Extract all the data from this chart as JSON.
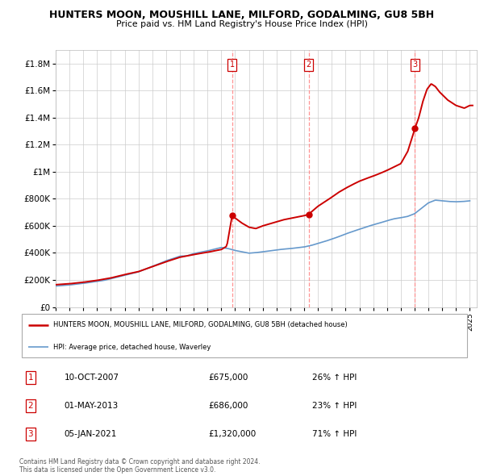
{
  "title": "HUNTERS MOON, MOUSHILL LANE, MILFORD, GODALMING, GU8 5BH",
  "subtitle": "Price paid vs. HM Land Registry's House Price Index (HPI)",
  "legend_line1": "HUNTERS MOON, MOUSHILL LANE, MILFORD, GODALMING, GU8 5BH (detached house)",
  "legend_line2": "HPI: Average price, detached house, Waverley",
  "transactions": [
    {
      "num": 1,
      "date": "10-OCT-2007",
      "price": 675000,
      "pct": "26%",
      "dir": "↑"
    },
    {
      "num": 2,
      "date": "01-MAY-2013",
      "price": 686000,
      "pct": "23%",
      "dir": "↑"
    },
    {
      "num": 3,
      "date": "05-JAN-2021",
      "price": 1320000,
      "pct": "71%",
      "dir": "↑"
    }
  ],
  "transaction_dates_dec": [
    2007.78,
    2013.33,
    2021.02
  ],
  "transaction_prices": [
    675000,
    686000,
    1320000
  ],
  "footnote1": "Contains HM Land Registry data © Crown copyright and database right 2024.",
  "footnote2": "This data is licensed under the Open Government Licence v3.0.",
  "ylim": [
    0,
    1900000
  ],
  "yticks": [
    0,
    200000,
    400000,
    600000,
    800000,
    1000000,
    1200000,
    1400000,
    1600000,
    1800000
  ],
  "ytick_labels": [
    "£0",
    "£200K",
    "£400K",
    "£600K",
    "£800K",
    "£1M",
    "£1.2M",
    "£1.4M",
    "£1.6M",
    "£1.8M"
  ],
  "xlim_start": 1995.0,
  "xlim_end": 2025.5,
  "red_color": "#CC0000",
  "blue_color": "#6699CC",
  "dashed_color": "#FF8888",
  "background_color": "#FFFFFF",
  "grid_color": "#CCCCCC",
  "hpi_years": [
    1995,
    1996,
    1997,
    1998,
    1999,
    2000,
    2001,
    2002,
    2003,
    2004,
    1995.5,
    1996.5,
    1997.5,
    1998.5,
    1999.5,
    2000.5,
    2001.5,
    2002.5,
    2003.5,
    2004.5,
    2005,
    2006,
    2007,
    2007.5,
    2008,
    2008.5,
    2009,
    2009.5,
    2010,
    2010.5,
    2011,
    2011.5,
    2012,
    2012.5,
    2013,
    2013.5,
    2014,
    2014.5,
    2015,
    2015.5,
    2016,
    2016.5,
    2017,
    2017.5,
    2018,
    2018.5,
    2019,
    2019.5,
    2020,
    2020.5,
    2021,
    2021.5,
    2022,
    2022.5,
    2023,
    2023.5,
    2024,
    2024.5,
    2025
  ],
  "hpi_prices": [
    155000,
    163000,
    175000,
    190000,
    210000,
    235000,
    260000,
    300000,
    342000,
    376000,
    159000,
    169000,
    182000,
    197000,
    222000,
    247000,
    280000,
    320000,
    358000,
    378000,
    395000,
    415000,
    440000,
    432000,
    418000,
    408000,
    398000,
    402000,
    408000,
    415000,
    422000,
    428000,
    432000,
    438000,
    444000,
    455000,
    470000,
    485000,
    502000,
    520000,
    540000,
    558000,
    575000,
    592000,
    608000,
    622000,
    638000,
    652000,
    660000,
    670000,
    690000,
    730000,
    770000,
    790000,
    785000,
    780000,
    778000,
    780000,
    785000
  ]
}
